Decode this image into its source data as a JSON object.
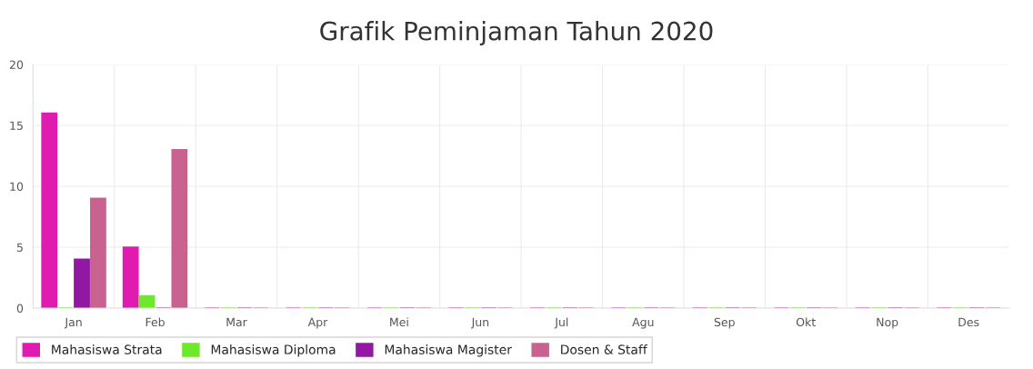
{
  "chart_data": {
    "type": "bar",
    "title": "Grafik Peminjaman Tahun 2020",
    "categories": [
      "Jan",
      "Feb",
      "Mar",
      "Apr",
      "Mei",
      "Jun",
      "Jul",
      "Agu",
      "Sep",
      "Okt",
      "Nop",
      "Des"
    ],
    "series": [
      {
        "name": "Mahasiswa Strata",
        "color": "#e01bb0",
        "values": [
          16,
          5,
          0,
          0,
          0,
          0,
          0,
          0,
          0,
          0,
          0,
          0
        ]
      },
      {
        "name": "Mahasiswa Diploma",
        "color": "#6ee82a",
        "values": [
          0,
          1,
          0,
          0,
          0,
          0,
          0,
          0,
          0,
          0,
          0,
          0
        ]
      },
      {
        "name": "Mahasiswa Magister",
        "color": "#9217a3",
        "values": [
          4,
          0,
          0,
          0,
          0,
          0,
          0,
          0,
          0,
          0,
          0,
          0
        ]
      },
      {
        "name": "Dosen & Staff",
        "color": "#c9628f",
        "values": [
          9,
          13,
          0,
          0,
          0,
          0,
          0,
          0,
          0,
          0,
          0,
          0
        ]
      }
    ],
    "ylim": [
      0,
      20
    ],
    "yticks": [
      0,
      5,
      10,
      15,
      20
    ],
    "grid": true,
    "legend": "bottom"
  }
}
